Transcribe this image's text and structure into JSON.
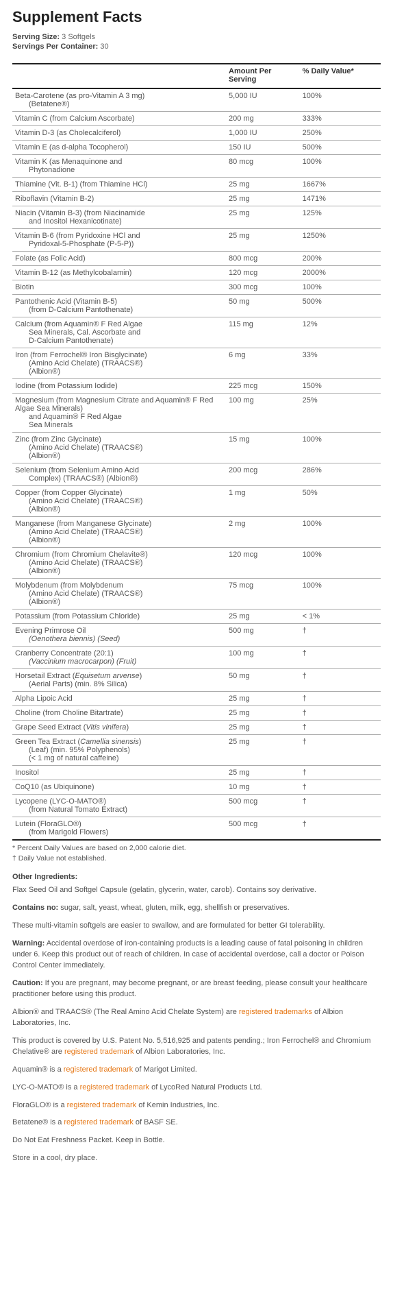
{
  "title": "Supplement Facts",
  "serving": {
    "size_label": "Serving Size:",
    "size_value": "3 Softgels",
    "per_container_label": "Servings Per Container:",
    "per_container_value": "30"
  },
  "columns": {
    "name": "",
    "amount": "Amount Per Serving",
    "dv": "% Daily Value*"
  },
  "rows": [
    {
      "name": "Beta-Carotene (as pro-Vitamin A 3 mg)",
      "sub": "(Betatene®)",
      "amount": "5,000 IU",
      "dv": "100%"
    },
    {
      "name": "Vitamin C (from Calcium Ascorbate)",
      "amount": "200 mg",
      "dv": "333%"
    },
    {
      "name": "Vitamin D-3 (as Cholecalciferol)",
      "amount": "1,000 IU",
      "dv": "250%"
    },
    {
      "name": "Vitamin E (as d-alpha Tocopherol)",
      "amount": "150 IU",
      "dv": "500%"
    },
    {
      "name": "Vitamin K (as Menaquinone and",
      "sub": "Phytonadione",
      "amount": "80 mcg",
      "dv": "100%"
    },
    {
      "name": "Thiamine (Vit. B-1) (from Thiamine HCl)",
      "amount": "25 mg",
      "dv": "1667%"
    },
    {
      "name": "Riboflavin (Vitamin B-2)",
      "amount": "25 mg",
      "dv": "1471%"
    },
    {
      "name": "Niacin (Vitamin B-3) (from Niacinamide",
      "sub": "and Inositol Hexanicotinate)",
      "amount": "25 mg",
      "dv": "125%"
    },
    {
      "name": "Vitamin B-6 (from Pyridoxine HCl and",
      "sub": "Pyridoxal-5-Phosphate (P-5-P))",
      "amount": "25 mg",
      "dv": "1250%"
    },
    {
      "name": "Folate (as Folic Acid)",
      "amount": "800 mcg",
      "dv": "200%"
    },
    {
      "name": "Vitamin B-12 (as Methylcobalamin)",
      "amount": "120 mcg",
      "dv": "2000%"
    },
    {
      "name": "Biotin",
      "amount": "300 mcg",
      "dv": "100%"
    },
    {
      "name": "Pantothenic Acid (Vitamin B-5)",
      "sub": "(from D-Calcium Pantothenate)",
      "amount": "50 mg",
      "dv": "500%"
    },
    {
      "name": "Calcium (from Aquamin® F Red Algae",
      "sub": "Sea Minerals, Cal. Ascorbate and\nD-Calcium Pantothenate)",
      "amount": "115 mg",
      "dv": "12%"
    },
    {
      "name": "Iron (from Ferrochel® Iron Bisglycinate)",
      "sub": "(Amino Acid Chelate) (TRAACS®)\n(Albion®)",
      "amount": "6 mg",
      "dv": "33%"
    },
    {
      "name": "Iodine (from Potassium Iodide)",
      "amount": "225 mcg",
      "dv": "150%"
    },
    {
      "name": "Magnesium (from Magnesium Citrate and Aquamin® F\nRed Algae Sea Minerals)",
      "sub": "and Aquamin® F Red Algae\nSea Minerals",
      "amount": "100 mg",
      "dv": "25%"
    },
    {
      "name": "Zinc (from Zinc Glycinate)",
      "sub": "(Amino Acid Chelate) (TRAACS®)\n(Albion®)",
      "amount": "15 mg",
      "dv": "100%"
    },
    {
      "name": "Selenium (from Selenium Amino Acid",
      "sub": "Complex) (TRAACS®) (Albion®)",
      "amount": "200 mcg",
      "dv": "286%"
    },
    {
      "name": "Copper (from Copper Glycinate)",
      "sub": "(Amino Acid Chelate) (TRAACS®)\n(Albion®)",
      "amount": "1 mg",
      "dv": "50%"
    },
    {
      "name": "Manganese (from Manganese Glycinate)",
      "sub": "(Amino Acid Chelate) (TRAACS®)\n(Albion®)",
      "amount": "2 mg",
      "dv": "100%"
    },
    {
      "name": "Chromium (from Chromium Chelavite®)",
      "sub": "(Amino Acid Chelate) (TRAACS®)\n(Albion®)",
      "amount": "120 mcg",
      "dv": "100%"
    },
    {
      "name": "Molybdenum (from Molybdenum",
      "sub": "(Amino Acid Chelate) (TRAACS®)\n(Albion®)",
      "amount": "75 mcg",
      "dv": "100%"
    },
    {
      "name": "Potassium (from Potassium Chloride)",
      "amount": "25 mg",
      "dv": "< 1%"
    },
    {
      "name": "Evening Primrose Oil",
      "sub_italic": "(Oenothera biennis) (Seed)",
      "amount": "500 mg",
      "dv": "†"
    },
    {
      "name": "Cranberry Concentrate (20:1)",
      "sub_italic": "(Vaccinium macrocarpon) (Fruit)",
      "amount": "100 mg",
      "dv": "†"
    },
    {
      "name_html": "Horsetail Extract (<i>Equisetum arvense</i>)",
      "sub": "(Aerial Parts) (min. 8% Silica)",
      "amount": "50 mg",
      "dv": "†"
    },
    {
      "name": "Alpha Lipoic Acid",
      "amount": "25 mg",
      "dv": "†"
    },
    {
      "name": "Choline (from Choline Bitartrate)",
      "amount": "25 mg",
      "dv": "†"
    },
    {
      "name_html": "Grape Seed Extract (<i>Vitis vinifera</i>)",
      "amount": "25 mg",
      "dv": "†"
    },
    {
      "name_html": "Green Tea Extract (<i>Camellia sinensis</i>)",
      "sub": "(Leaf) (min. 95% Polyphenols)\n(< 1 mg of natural caffeine)",
      "amount": "25 mg",
      "dv": "†"
    },
    {
      "name": "Inositol",
      "amount": "25 mg",
      "dv": "†"
    },
    {
      "name": "CoQ10 (as Ubiquinone)",
      "amount": "10 mg",
      "dv": "†"
    },
    {
      "name": "Lycopene (LYC-O-MATO®)",
      "sub": "(from Natural Tomato Extract)",
      "amount": "500 mcg",
      "dv": "†"
    },
    {
      "name": "Lutein (FloraGLO®)",
      "sub": "(from Marigold Flowers)",
      "amount": "500 mcg",
      "dv": "†"
    }
  ],
  "footnotes": [
    "* Percent Daily Values are based on 2,000 calorie diet.",
    "† Daily Value not established."
  ],
  "other_ingredients_heading": "Other Ingredients:",
  "paragraphs": [
    {
      "text": "Flax Seed Oil and Softgel Capsule (gelatin, glycerin, water, carob). Contains soy derivative."
    },
    {
      "bold": "Contains no:",
      "text": "  sugar, salt, yeast, wheat, gluten, milk, egg, shellfish or preservatives."
    },
    {
      "text": "These multi-vitamin softgels are easier to swallow, and are formulated for better GI tolerability."
    },
    {
      "bold": "Warning:",
      "text": "  Accidental overdose of iron-containing products is a leading cause of fatal poisoning in children under 6. Keep this product out of reach of children. In case of accidental overdose, call a doctor or Poison Control Center immediately."
    },
    {
      "bold": "Caution:",
      "text": "  If you are pregnant, may become pregnant, or are breast feeding, please consult your healthcare practitioner before using this product."
    },
    {
      "pre": "Albion® and TRAACS® (The Real Amino Acid Chelate System) are ",
      "link": "registered trademarks",
      "post": " of Albion Laboratories, Inc."
    },
    {
      "pre": "This product is covered by U.S. Patent No. 5,516,925 and patents pending.; Iron Ferrochel® and Chromium Chelative® are ",
      "link": "registered trademark",
      "post": " of Albion Laboratories, Inc."
    },
    {
      "pre": "Aquamin® is a ",
      "link": "registered trademark",
      "post": " of Marigot Limited."
    },
    {
      "pre": "LYC-O-MATO® is a ",
      "link": "registered trademark",
      "post": " of LycoRed Natural Products Ltd."
    },
    {
      "pre": "FloraGLO® is a ",
      "link": "registered trademark",
      "post": " of Kemin Industries, Inc."
    },
    {
      "pre": "Betatene® is a ",
      "link": "registered trademark",
      "post": " of BASF SE."
    },
    {
      "text": "Do Not Eat Freshness Packet.  Keep in Bottle."
    },
    {
      "text": "Store in a cool, dry place."
    }
  ]
}
